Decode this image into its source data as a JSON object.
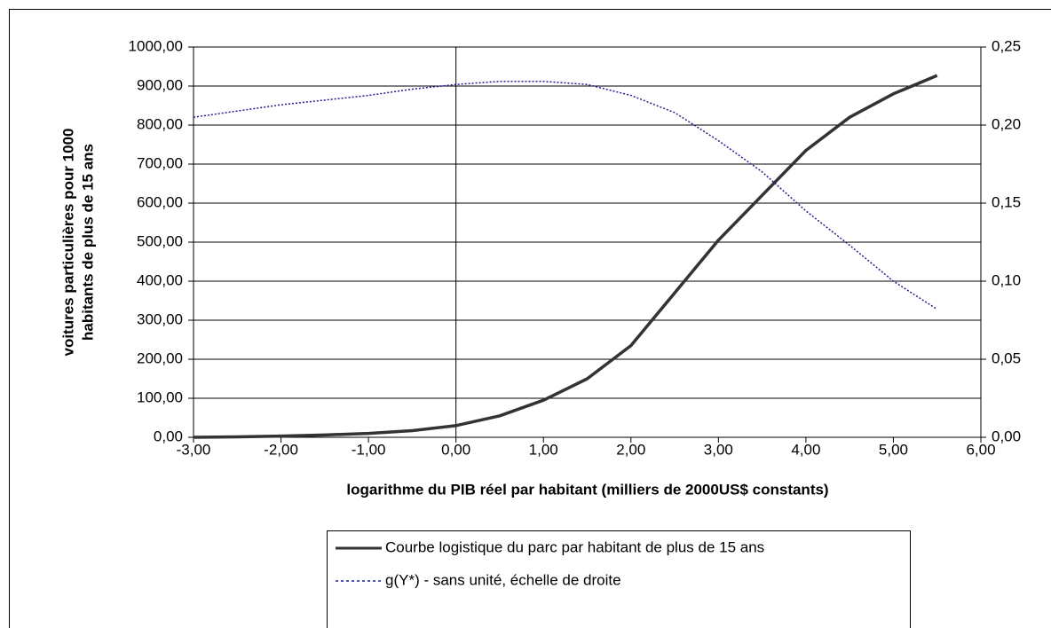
{
  "chart_data": {
    "type": "line",
    "xlabel": "logarithme du PIB réel par habitant (milliers de 2000US$ constants)",
    "ylabel": [
      "voitures particulières pour 1000",
      "habitants de plus de 15 ans"
    ],
    "x": [
      -3,
      -2.5,
      -2,
      -1.5,
      -1,
      -0.5,
      0,
      0.5,
      1,
      1.5,
      2,
      2.5,
      3,
      3.5,
      4,
      4.5,
      5,
      5.5
    ],
    "series": [
      {
        "name": "Courbe logistique du parc par habitant de plus de 15 ans",
        "color": "#333333",
        "style": "solid",
        "values": [
          0,
          1,
          3,
          6,
          10,
          17,
          30,
          55,
          95,
          150,
          235,
          370,
          505,
          620,
          735,
          820,
          880,
          927
        ]
      },
      {
        "name": "g(Y*) - sans unité, échelle de droite",
        "color": "#1f1f8f",
        "style": "dotted",
        "axis": "y2",
        "values": [
          0.205,
          0.209,
          0.213,
          0.216,
          0.219,
          0.223,
          0.226,
          0.228,
          0.228,
          0.226,
          0.219,
          0.208,
          0.19,
          0.17,
          0.145,
          0.123,
          0.1,
          0.082
        ]
      }
    ],
    "xlim": [
      -3,
      6
    ],
    "xticks": [
      {
        "value": -3,
        "label": "-3,00"
      },
      {
        "value": -2,
        "label": "-2,00"
      },
      {
        "value": -1,
        "label": "-1,00"
      },
      {
        "value": 0,
        "label": "0,00"
      },
      {
        "value": 1,
        "label": "1,00"
      },
      {
        "value": 2,
        "label": "2,00"
      },
      {
        "value": 3,
        "label": "3,00"
      },
      {
        "value": 4,
        "label": "4,00"
      },
      {
        "value": 5,
        "label": "5,00"
      },
      {
        "value": 6,
        "label": "6,00"
      }
    ],
    "ylim": [
      0,
      1000
    ],
    "yticks": [
      {
        "value": 0,
        "label": "0,00"
      },
      {
        "value": 100,
        "label": "100,00"
      },
      {
        "value": 200,
        "label": "200,00"
      },
      {
        "value": 300,
        "label": "300,00"
      },
      {
        "value": 400,
        "label": "400,00"
      },
      {
        "value": 500,
        "label": "500,00"
      },
      {
        "value": 600,
        "label": "600,00"
      },
      {
        "value": 700,
        "label": "700,00"
      },
      {
        "value": 800,
        "label": "800,00"
      },
      {
        "value": 900,
        "label": "900,00"
      },
      {
        "value": 1000,
        "label": "1000,00"
      }
    ],
    "y2lim": [
      0,
      0.25
    ],
    "y2ticks": [
      {
        "value": 0,
        "label": "0,00"
      },
      {
        "value": 0.05,
        "label": "0,05"
      },
      {
        "value": 0.1,
        "label": "0,10"
      },
      {
        "value": 0.15,
        "label": "0,15"
      },
      {
        "value": 0.2,
        "label": "0,20"
      },
      {
        "value": 0.25,
        "label": "0,25"
      }
    ],
    "grid": true,
    "yaxis_crosses_x": 0,
    "legend": "bottom"
  }
}
